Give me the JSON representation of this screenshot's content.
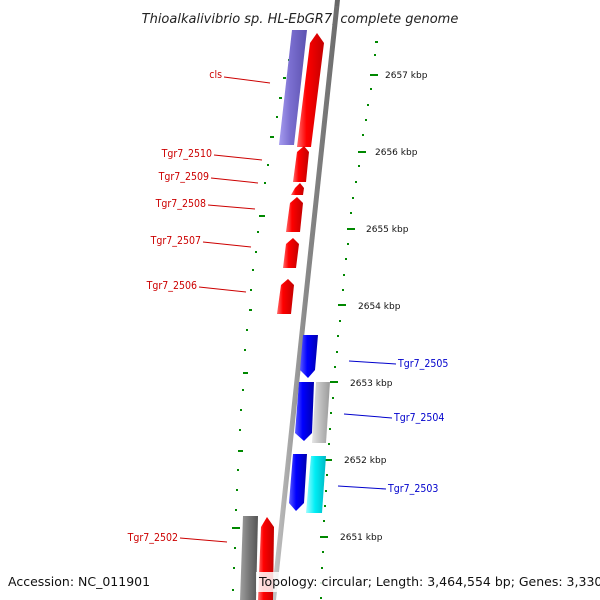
{
  "title": "Thioalkalivibrio sp. HL-EbGR7, complete genome",
  "footer": {
    "accession": "Accession: NC_011901",
    "topology": "Topology: circular; Length: 3,464,554 bp; Genes: 3,330"
  },
  "kbp_ticks": [
    {
      "label": "2657 kbp"
    },
    {
      "label": "2656 kbp"
    },
    {
      "label": "2655 kbp"
    },
    {
      "label": "2654 kbp"
    },
    {
      "label": "2653 kbp"
    },
    {
      "label": "2652 kbp"
    },
    {
      "label": "2651 kbp"
    }
  ],
  "genes": [
    {
      "id": "cls",
      "label": "cls",
      "color": "#7b6fd0",
      "label_color": "#cc0000"
    },
    {
      "id": "Tgr7_2510",
      "label": "Tgr7_2510",
      "color": "#ff0000",
      "label_color": "#cc0000"
    },
    {
      "id": "Tgr7_2509",
      "label": "Tgr7_2509",
      "color": "#ff0000",
      "label_color": "#cc0000"
    },
    {
      "id": "Tgr7_2508",
      "label": "Tgr7_2508",
      "color": "#ff0000",
      "label_color": "#cc0000"
    },
    {
      "id": "Tgr7_2507",
      "label": "Tgr7_2507",
      "color": "#ff0000",
      "label_color": "#cc0000"
    },
    {
      "id": "Tgr7_2506",
      "label": "Tgr7_2506",
      "color": "#ff0000",
      "label_color": "#cc0000"
    },
    {
      "id": "Tgr7_2505",
      "label": "Tgr7_2505",
      "color": "#0000ff",
      "label_color": "#0000cc"
    },
    {
      "id": "Tgr7_2504",
      "label": "Tgr7_2504",
      "color": "#0000ff",
      "label_color": "#0000cc"
    },
    {
      "id": "Tgr7_2503",
      "label": "Tgr7_2503",
      "color": "#0000ff",
      "label_color": "#0000cc"
    },
    {
      "id": "Tgr7_2502",
      "label": "Tgr7_2502",
      "color": "#ff0000",
      "label_color": "#cc0000"
    }
  ],
  "colors": {
    "forward_strand": "#ff0000",
    "reverse_strand": "#0000ff",
    "cls_gene": "#7b6fd0",
    "gray_feature": "#bdbdbd",
    "cyan_feature": "#00e5ee",
    "dark_gray_feature": "#777777",
    "backbone": "#888888",
    "tick_green": "#008800"
  }
}
